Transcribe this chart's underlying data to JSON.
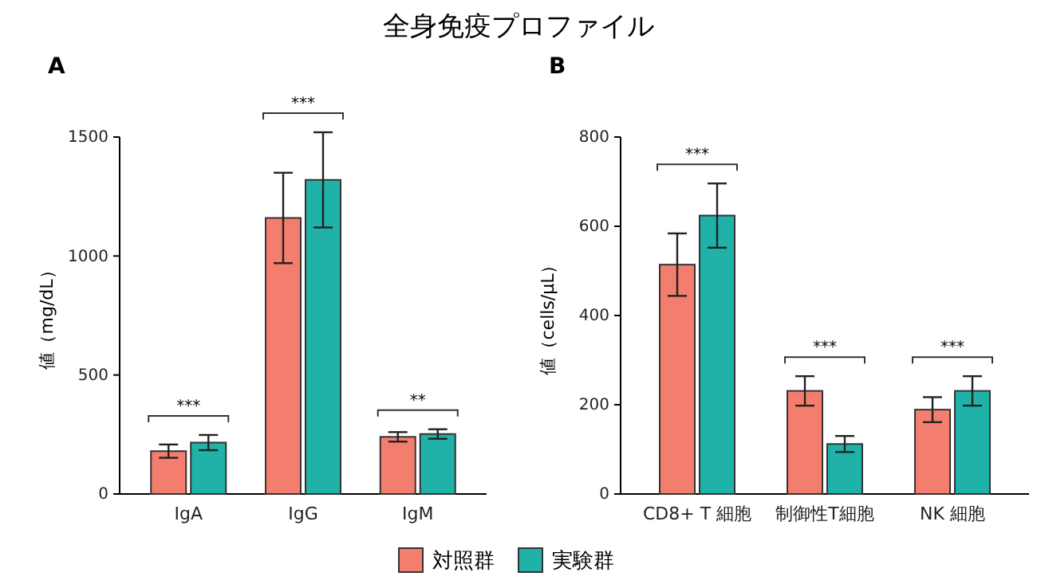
{
  "chart_data": [
    {
      "type": "bar",
      "title": "全身免疫プロファイル",
      "subtitle": "A",
      "ylabel": "値（mg/dL）",
      "categories": [
        "IgA",
        "IgG",
        "IgM"
      ],
      "series": [
        {
          "name": "対照群",
          "color": "#f47e6e",
          "values": [
            180,
            1160,
            240
          ],
          "errors": [
            28,
            190,
            20
          ]
        },
        {
          "name": "実験群",
          "color": "#20b2a8",
          "values": [
            216,
            1320,
            252
          ],
          "errors": [
            32,
            200,
            20
          ]
        }
      ],
      "ylim": [
        0,
        1500
      ],
      "yticks": [
        0,
        500,
        1000,
        1500
      ],
      "grid": false,
      "legend": "bottom",
      "annotations": [
        "***",
        "***",
        "**"
      ]
    },
    {
      "type": "bar",
      "subtitle": "B",
      "ylabel": "値（cells/μL）",
      "categories": [
        "CD8+ T 細胞",
        "制御性T細胞",
        "NK 細胞"
      ],
      "series": [
        {
          "color": "#f47e6e",
          "values": [
            514,
            231,
            189
          ],
          "errors": [
            70,
            33,
            28
          ]
        },
        {
          "color": "#20b2a8",
          "values": [
            624,
            112,
            231
          ],
          "errors": [
            72,
            18,
            33
          ]
        }
      ],
      "ylim": [
        0,
        800
      ],
      "yticks": [
        0,
        200,
        400,
        600,
        800
      ],
      "grid": false,
      "annotations": [
        "***",
        "***",
        "***"
      ]
    }
  ]
}
